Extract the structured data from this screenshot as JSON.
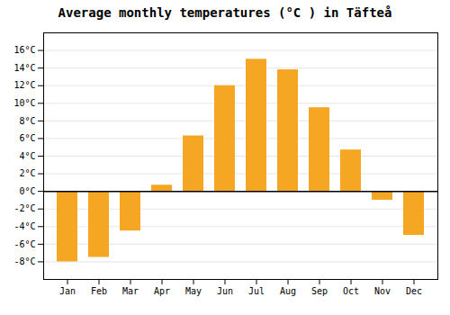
{
  "chart_data": {
    "type": "bar",
    "title": "Average monthly temperatures (°C ) in Täfteå",
    "categories": [
      "Jan",
      "Feb",
      "Mar",
      "Apr",
      "May",
      "Jun",
      "Jul",
      "Aug",
      "Sep",
      "Oct",
      "Nov",
      "Dec"
    ],
    "values": [
      -8.0,
      -7.5,
      -4.5,
      0.7,
      6.3,
      12.0,
      15.0,
      13.8,
      9.5,
      4.7,
      -1.0,
      -5.0
    ],
    "color": "#F5A623",
    "ylim": [
      -10,
      18
    ],
    "yticks": [
      {
        "value": -8,
        "label": "-8°C"
      },
      {
        "value": -6,
        "label": "-6°C"
      },
      {
        "value": -4,
        "label": "-4°C"
      },
      {
        "value": -2,
        "label": "-2°C"
      },
      {
        "value": 0,
        "label": "0°C"
      },
      {
        "value": 2,
        "label": "2°C"
      },
      {
        "value": 4,
        "label": "4°C"
      },
      {
        "value": 6,
        "label": "6°C"
      },
      {
        "value": 8,
        "label": "8°C"
      },
      {
        "value": 10,
        "label": "10°C"
      },
      {
        "value": 12,
        "label": "12°C"
      },
      {
        "value": 14,
        "label": "14°C"
      },
      {
        "value": 16,
        "label": "16°C"
      }
    ],
    "grid": true
  }
}
